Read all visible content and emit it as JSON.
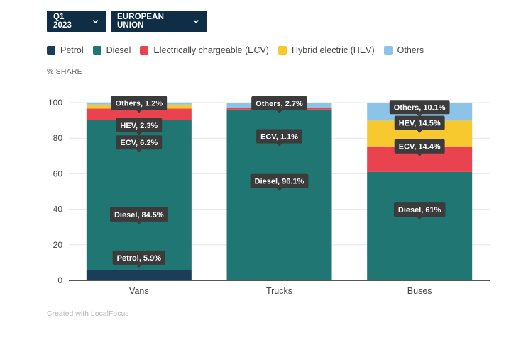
{
  "controls": {
    "period": "Q1 2023",
    "region": "EUROPEAN UNION"
  },
  "legend": [
    {
      "label": "Petrol",
      "color": "#1c3d5a"
    },
    {
      "label": "Diesel",
      "color": "#1f7672"
    },
    {
      "label": "Electrically chargeable (ECV)",
      "color": "#e9434f"
    },
    {
      "label": "Hybrid electric (HEV)",
      "color": "#f7c92e"
    },
    {
      "label": "Others",
      "color": "#8cc4e8"
    }
  ],
  "footer": "Created with LocalFocus",
  "chart_data": {
    "type": "bar",
    "stacked": true,
    "ylabel": "% SHARE",
    "ylim": [
      0,
      100
    ],
    "yticks": [
      0,
      20,
      40,
      60,
      80,
      100
    ],
    "categories": [
      "Vans",
      "Trucks",
      "Buses"
    ],
    "series": [
      {
        "name": "Petrol",
        "color": "#1c3d5a",
        "values": [
          5.9,
          0,
          0
        ]
      },
      {
        "name": "Diesel",
        "color": "#1f7672",
        "values": [
          84.5,
          96.1,
          61
        ]
      },
      {
        "name": "Electrically chargeable (ECV)",
        "color": "#e9434f",
        "values": [
          6.2,
          1.1,
          14.4
        ]
      },
      {
        "name": "Hybrid electric (HEV)",
        "color": "#f7c92e",
        "values": [
          2.3,
          0,
          14.5
        ]
      },
      {
        "name": "Others",
        "color": "#8cc4e8",
        "values": [
          1.2,
          2.7,
          10.1
        ]
      }
    ],
    "labels": [
      {
        "category": "Vans",
        "text": "Others, 1.2%",
        "value": 99.8
      },
      {
        "category": "Vans",
        "text": "HEV, 2.3%",
        "value": 87.3
      },
      {
        "category": "Vans",
        "text": "ECV, 6.2%",
        "value": 77.6
      },
      {
        "category": "Vans",
        "text": "Diesel, 84.5%",
        "value": 37.1
      },
      {
        "category": "Vans",
        "text": "Petrol, 5.9%",
        "value": 12.8
      },
      {
        "category": "Trucks",
        "text": "Others, 2.7%",
        "value": 99.6
      },
      {
        "category": "Trucks",
        "text": "ECV, 1.1%",
        "value": 81.1
      },
      {
        "category": "Trucks",
        "text": "Diesel, 96.1%",
        "value": 55.9
      },
      {
        "category": "Buses",
        "text": "Others, 10.1%",
        "value": 97.5
      },
      {
        "category": "Buses",
        "text": "HEV, 14.5%",
        "value": 88.6
      },
      {
        "category": "Buses",
        "text": "ECV, 14.4%",
        "value": 75.4
      },
      {
        "category": "Buses",
        "text": "Diesel, 61%",
        "value": 39.8
      }
    ]
  }
}
